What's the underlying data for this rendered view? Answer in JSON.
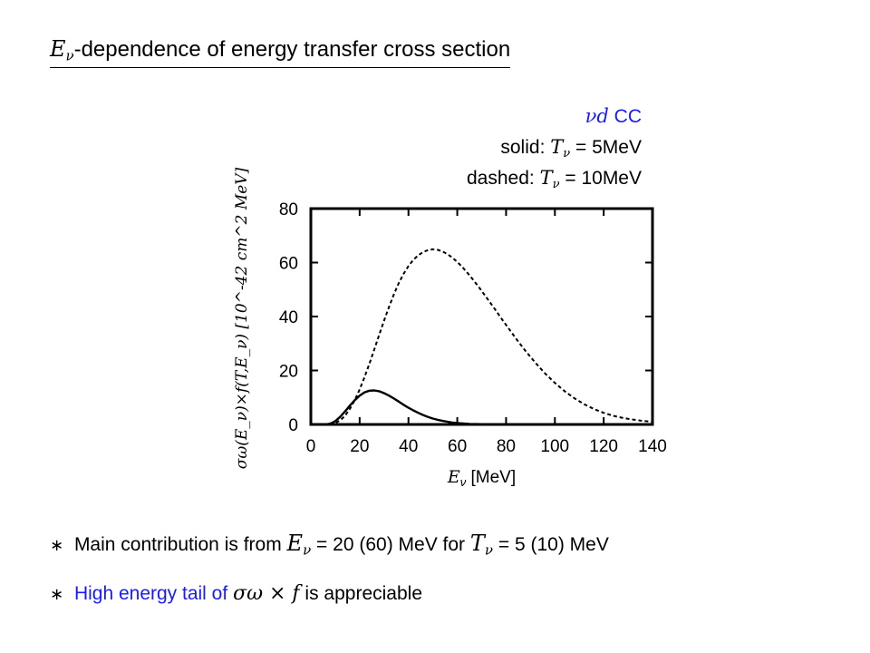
{
  "heading": {
    "symbol": "E",
    "symbol_sub": "ν",
    "text": "-dependence of energy transfer cross section"
  },
  "legend": {
    "process_symbol": "νd",
    "process_text": "CC",
    "solid_prefix": "solid:",
    "solid_symbol": "T",
    "solid_sub": "ν",
    "solid_value": "= 5MeV",
    "dashed_prefix": "dashed:",
    "dashed_symbol": "T",
    "dashed_sub": "ν",
    "dashed_value": "= 10MeV"
  },
  "bullets": {
    "star": "∗",
    "b1_pre": "Main contribution is from",
    "b1_sym1": "E",
    "b1_sub1": "ν",
    "b1_mid": "= 20 (60) MeV for",
    "b1_sym2": "T",
    "b1_sub2": "ν",
    "b1_post": "= 5 (10) MeV",
    "b2_pre": "High energy tail of",
    "b2_math": "σω × f",
    "b2_post": "is appreciable"
  },
  "colors": {
    "accent": "#1a1aff",
    "line": "#000000"
  },
  "chart_data": {
    "type": "line",
    "xlabel": "E_ν [MeV]",
    "xlabel_symbol": "E",
    "xlabel_sub": "ν",
    "xlabel_unit": "[MeV]",
    "ylabel": "σω(E_ν)×f(T,E_ν) [10^-42 cm^2 MeV]",
    "xlim": [
      0,
      140
    ],
    "ylim": [
      0,
      80
    ],
    "xticks": [
      0,
      20,
      40,
      60,
      80,
      100,
      120,
      140
    ],
    "yticks": [
      0,
      20,
      40,
      60,
      80
    ],
    "grid": false,
    "series": [
      {
        "name": "solid: T_ν = 5MeV",
        "style": "solid",
        "x": [
          0,
          6,
          8,
          10,
          12,
          14,
          16,
          18,
          20,
          22,
          24,
          26,
          28,
          30,
          32,
          34,
          36,
          38,
          40,
          42,
          44,
          46,
          48,
          50,
          52,
          54,
          56,
          58,
          60,
          65,
          70,
          80,
          140
        ],
        "y": [
          0,
          0,
          0.3,
          1.2,
          2.8,
          4.8,
          7.0,
          9.0,
          10.7,
          11.9,
          12.5,
          12.6,
          12.3,
          11.6,
          10.7,
          9.6,
          8.5,
          7.3,
          6.2,
          5.2,
          4.3,
          3.5,
          2.8,
          2.2,
          1.7,
          1.3,
          1.0,
          0.7,
          0.5,
          0.2,
          0.1,
          0,
          0
        ]
      },
      {
        "name": "dashed: T_ν = 10MeV",
        "style": "dashed",
        "x": [
          0,
          8,
          10,
          12,
          14,
          16,
          18,
          20,
          22,
          24,
          26,
          28,
          30,
          32,
          34,
          36,
          38,
          40,
          42,
          44,
          46,
          48,
          50,
          52,
          54,
          56,
          58,
          60,
          62,
          64,
          66,
          68,
          70,
          72,
          74,
          76,
          78,
          80,
          84,
          88,
          92,
          96,
          100,
          104,
          108,
          112,
          116,
          120,
          124,
          128,
          132,
          136,
          140
        ],
        "y": [
          0,
          0,
          0.5,
          1.5,
          3.2,
          5.8,
          9.0,
          13.0,
          17.5,
          22.5,
          27.8,
          33.2,
          38.5,
          43.5,
          48.2,
          52.3,
          55.8,
          58.7,
          61.0,
          62.7,
          63.9,
          64.6,
          64.9,
          64.7,
          64.1,
          63.1,
          61.8,
          60.2,
          58.4,
          56.4,
          54.2,
          51.9,
          49.5,
          47.0,
          44.5,
          42.0,
          39.4,
          36.9,
          31.9,
          27.2,
          22.9,
          18.9,
          15.4,
          12.3,
          9.7,
          7.5,
          5.7,
          4.3,
          3.2,
          2.4,
          1.8,
          1.3,
          1.0
        ]
      }
    ]
  }
}
